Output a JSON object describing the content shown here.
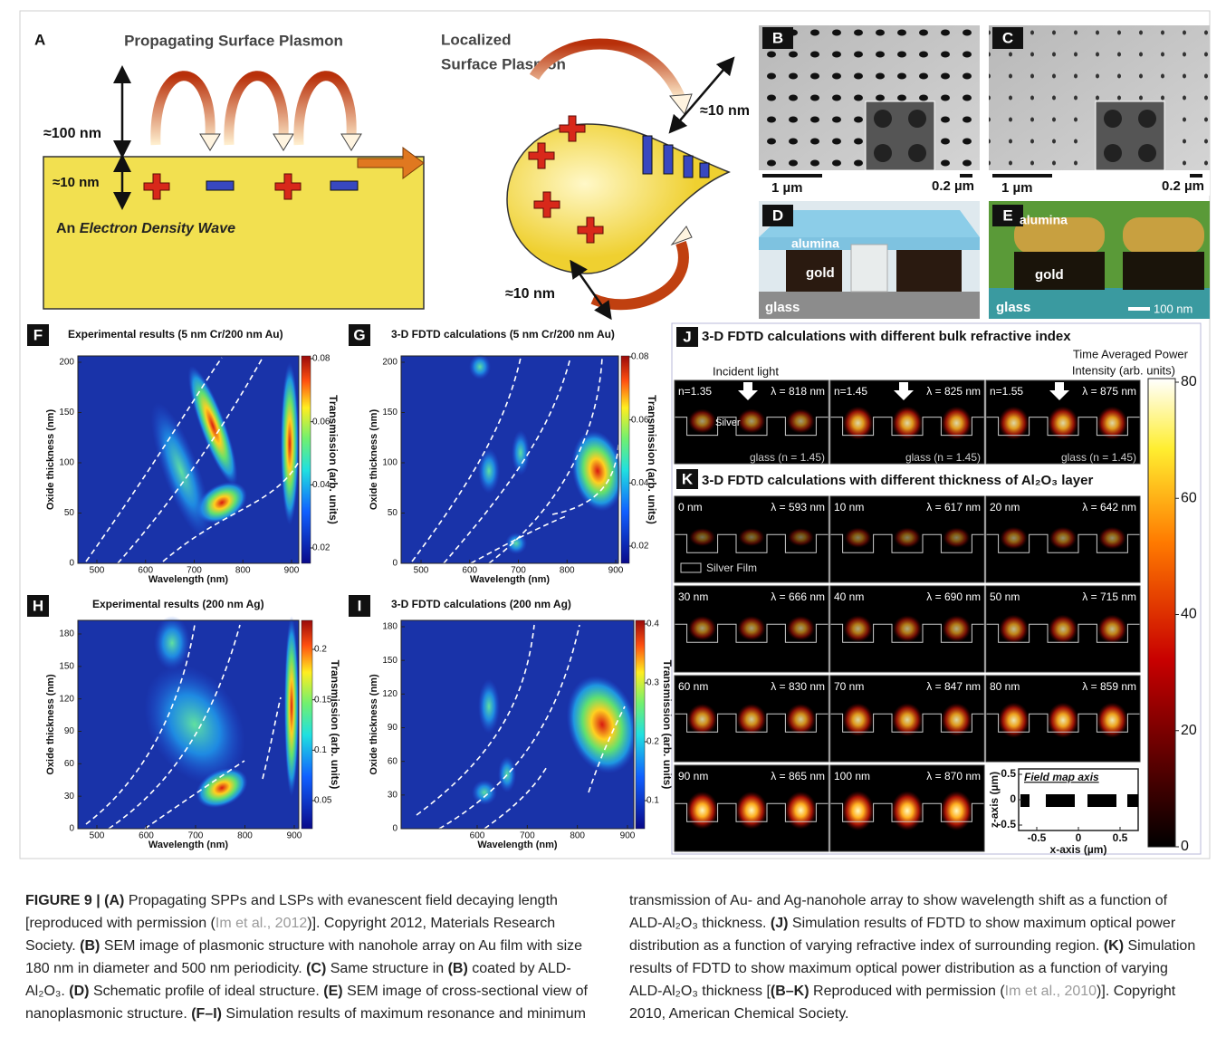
{
  "panel_a": {
    "label": "A",
    "title_psp": "Propagating Surface Plasmon",
    "title_lsp_1": "Localized",
    "title_lsp_2": "Surface Plasmon",
    "dim_100nm": "≈100 nm",
    "dim_10nm": "≈10 nm",
    "wave_text_1": "An ",
    "wave_text_2": "Electron Density Wave",
    "lsp_dim_1": "≈10 nm",
    "lsp_dim_2": "≈10 nm"
  },
  "panel_b": {
    "label": "B",
    "scale_1": "1 µm",
    "scale_2": "0.2 µm"
  },
  "panel_c": {
    "label": "C",
    "scale_1": "1 µm",
    "scale_2": "0.2 µm"
  },
  "panel_d": {
    "label": "D",
    "alumina": "alumina",
    "gold": "gold",
    "glass": "glass"
  },
  "panel_e": {
    "label": "E",
    "alumina": "alumina",
    "gold": "gold",
    "glass": "glass",
    "scale": "100 nm"
  },
  "heatmaps": [
    {
      "label": "F",
      "title": "Experimental results (5 nm Cr/200 nm Au)",
      "xlabel": "Wavelength (nm)",
      "ylabel": "Oxide thickness (nm)",
      "xticks": [
        500,
        600,
        700,
        800,
        900
      ],
      "yticks": [
        0,
        50,
        100,
        150,
        200
      ],
      "cbar_label": "Transmission (arb. units)",
      "cbar_ticks": [
        0.02,
        0.04,
        0.06,
        0.08
      ]
    },
    {
      "label": "G",
      "title": "3-D FDTD calculations (5 nm Cr/200 nm Au)",
      "xlabel": "Wavelength (nm)",
      "ylabel": "Oxide thickness (nm)",
      "xticks": [
        500,
        600,
        700,
        800,
        900
      ],
      "yticks": [
        0,
        50,
        100,
        150,
        200
      ],
      "cbar_label": "Transmission (arb. units)",
      "cbar_ticks": [
        0.02,
        0.04,
        0.06,
        0.08
      ]
    },
    {
      "label": "H",
      "title": "Experimental results (200 nm Ag)",
      "xlabel": "Wavelength (nm)",
      "ylabel": "Oxide thickness (nm)",
      "xticks": [
        500,
        600,
        700,
        800,
        900
      ],
      "yticks": [
        0,
        30,
        60,
        90,
        120,
        150,
        180
      ],
      "cbar_label": "Transmission (arb. units)",
      "cbar_ticks": [
        0.05,
        0.1,
        0.15,
        0.2
      ]
    },
    {
      "label": "I",
      "title": "3-D FDTD calculations (200 nm Ag)",
      "xlabel": "Wavelength (nm)",
      "ylabel": "Oxide thickness (nm)",
      "xticks": [
        600,
        700,
        800,
        900
      ],
      "yticks": [
        0,
        30,
        60,
        90,
        120,
        150,
        180
      ],
      "cbar_label": "Transmission (arb. units)",
      "cbar_ticks": [
        0.1,
        0.2,
        0.3,
        0.4
      ]
    }
  ],
  "panel_j": {
    "label": "J",
    "title": "3-D FDTD calculations with different bulk refractive index",
    "incident": "Incident light",
    "silver": "Silver",
    "maps": [
      {
        "n": "n=1.35",
        "lambda": "λ = 818 nm",
        "glass": "glass (n = 1.45)"
      },
      {
        "n": "n=1.45",
        "lambda": "λ = 825 nm",
        "glass": "glass (n = 1.45)"
      },
      {
        "n": "n=1.55",
        "lambda": "λ = 875 nm",
        "glass": "glass (n = 1.45)"
      }
    ]
  },
  "colorbar": {
    "title_1": "Time Averaged Power",
    "title_2": "Intensity (arb. units)",
    "ticks": [
      0,
      20,
      40,
      60,
      80
    ]
  },
  "panel_k": {
    "label": "K",
    "title": "3-D FDTD calculations with different thickness of Al₂O₃ layer",
    "legend": "Silver Film",
    "maps": [
      {
        "t": "0 nm",
        "lambda": "λ = 593 nm"
      },
      {
        "t": "10 nm",
        "lambda": "λ = 617 nm"
      },
      {
        "t": "20 nm",
        "lambda": "λ = 642 nm"
      },
      {
        "t": "30 nm",
        "lambda": "λ = 666 nm"
      },
      {
        "t": "40 nm",
        "lambda": "λ = 690 nm"
      },
      {
        "t": "50 nm",
        "lambda": "λ = 715 nm"
      },
      {
        "t": "60 nm",
        "lambda": "λ = 830 nm"
      },
      {
        "t": "70 nm",
        "lambda": "λ = 847 nm"
      },
      {
        "t": "80 nm",
        "lambda": "λ = 859 nm"
      },
      {
        "t": "90 nm",
        "lambda": "λ = 865 nm"
      },
      {
        "t": "100 nm",
        "lambda": "λ = 870 nm"
      }
    ],
    "field_axis": {
      "title": "Field map axis",
      "ylabel": "z-axis (µm)",
      "xlabel": "x-axis (µm)",
      "xticks": [
        -0.5,
        0,
        0.5
      ],
      "yticks": [
        0.5,
        0,
        -0.5
      ]
    }
  },
  "caption": {
    "segments": [
      {
        "text": "FIGURE 9 | (A)",
        "style": "bold"
      },
      {
        "text": " Propagating SPPs and LSPs with evanescent field decaying length [reproduced with permission (",
        "style": "normal"
      },
      {
        "text": "Im et al., 2012",
        "style": "link"
      },
      {
        "text": ")]. Copyright 2012, Materials Research Society. ",
        "style": "normal"
      },
      {
        "text": "(B)",
        "style": "bold"
      },
      {
        "text": " SEM image of plasmonic structure with nanohole array on Au film with size 180 nm in diameter and 500 nm periodicity. ",
        "style": "normal"
      },
      {
        "text": "(C)",
        "style": "bold"
      },
      {
        "text": " Same structure in ",
        "style": "normal"
      },
      {
        "text": "(B)",
        "style": "bold"
      },
      {
        "text": " coated by ALD-Al₂O₃. ",
        "style": "normal"
      },
      {
        "text": "(D)",
        "style": "bold"
      },
      {
        "text": " Schematic profile of ideal structure. ",
        "style": "normal"
      },
      {
        "text": "(E)",
        "style": "bold"
      },
      {
        "text": " SEM image of cross-sectional view of nanoplasmonic structure. ",
        "style": "normal"
      },
      {
        "text": "(F–I)",
        "style": "bold"
      },
      {
        "text": " Simulation results of maximum resonance and minimum transmission of Au- and Ag-nanohole array to show wavelength shift as a function of ALD-Al₂O₃ thickness. ",
        "style": "normal"
      },
      {
        "text": "(J)",
        "style": "bold"
      },
      {
        "text": " Simulation results of FDTD to show maximum optical power distribution as a function of varying refractive index of surrounding region. ",
        "style": "normal"
      },
      {
        "text": "(K)",
        "style": "bold"
      },
      {
        "text": " Simulation results of FDTD to show maximum optical power distribution as a function of varying ALD-Al₂O₃ thickness [",
        "style": "normal"
      },
      {
        "text": "(B–K)",
        "style": "bold"
      },
      {
        "text": " Reproduced with permission (",
        "style": "normal"
      },
      {
        "text": "Im et al., 2010",
        "style": "link"
      },
      {
        "text": ")]. Copyright 2010, American Chemical Society.",
        "style": "normal"
      }
    ]
  }
}
